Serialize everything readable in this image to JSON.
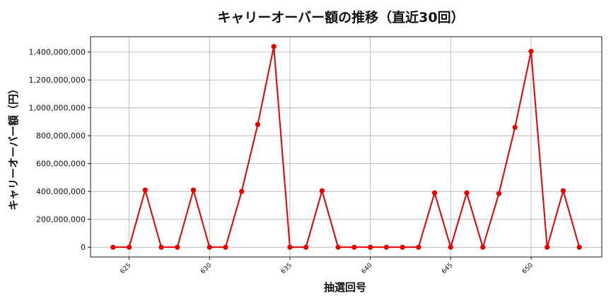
{
  "chart_data": {
    "type": "line",
    "title": "キャリーオーバー額の推移（直近30回）",
    "xlabel": "抽選回号",
    "ylabel": "キャリーオーバー額（円）",
    "xlim": [
      622.6,
      654.4
    ],
    "ylim": [
      -70000000,
      1510000000
    ],
    "xticks": [
      625,
      630,
      635,
      640,
      645,
      650
    ],
    "yticks": [
      0,
      200000000,
      400000000,
      600000000,
      800000000,
      1000000000,
      1200000000,
      1400000000
    ],
    "grid": true,
    "series": [
      {
        "color": "#e60000",
        "x": [
          624,
          625,
          626,
          627,
          628,
          629,
          630,
          631,
          632,
          633,
          634,
          635,
          636,
          637,
          638,
          639,
          640,
          641,
          642,
          643,
          644,
          645,
          646,
          647,
          648,
          649,
          650,
          651,
          652,
          653
        ],
        "values": [
          0,
          0,
          410000000,
          0,
          0,
          410000000,
          0,
          0,
          400000000,
          880000000,
          1440000000,
          0,
          0,
          405000000,
          0,
          0,
          0,
          0,
          0,
          0,
          390000000,
          0,
          390000000,
          0,
          385000000,
          860000000,
          1405000000,
          0,
          405000000,
          0
        ]
      }
    ]
  }
}
